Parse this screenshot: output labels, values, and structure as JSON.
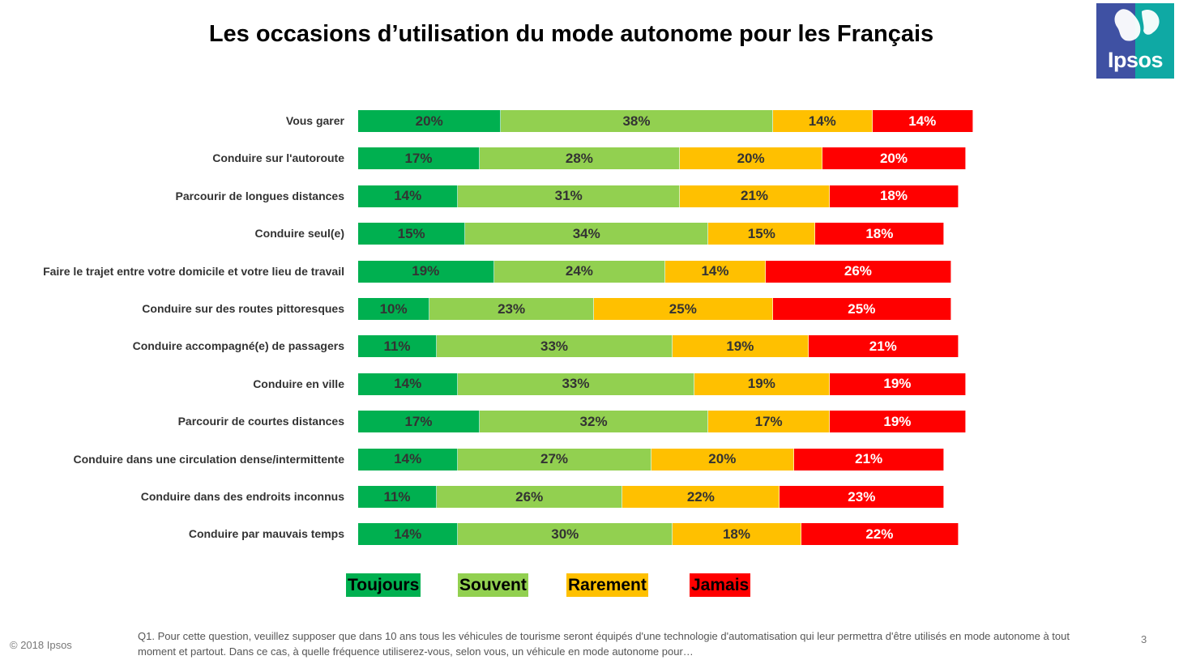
{
  "title": "Les occasions d’utilisation du mode autonome pour les Français",
  "logo": {
    "text": "Ipsos",
    "colors": {
      "blue": "#3f51a3",
      "teal": "#0fa9a4"
    }
  },
  "chart_data": {
    "type": "bar",
    "orientation": "horizontal-stacked",
    "title": "Les occasions d’utilisation du mode autonome pour les Français",
    "unit": "%",
    "categories": [
      "Vous garer",
      "Conduire sur l'autoroute",
      "Parcourir de longues distances",
      "Conduire seul(e)",
      "Faire le trajet entre votre domicile et votre lieu de travail",
      "Conduire sur des routes pittoresques",
      "Conduire accompagné(e) de passagers",
      "Conduire en ville",
      "Parcourir de courtes distances",
      "Conduire dans une circulation dense/intermittente",
      "Conduire dans des endroits inconnus",
      "Conduire par mauvais temps"
    ],
    "series": [
      {
        "name": "Toujours",
        "color": "#00b050",
        "text_color": "#333333",
        "values": [
          20,
          17,
          14,
          15,
          19,
          10,
          11,
          14,
          17,
          14,
          11,
          14
        ]
      },
      {
        "name": "Souvent",
        "color": "#92d050",
        "text_color": "#333333",
        "values": [
          38,
          28,
          31,
          34,
          24,
          23,
          33,
          33,
          32,
          27,
          26,
          30
        ]
      },
      {
        "name": "Rarement",
        "color": "#ffc000",
        "text_color": "#333333",
        "values": [
          14,
          20,
          21,
          15,
          14,
          25,
          19,
          19,
          17,
          20,
          22,
          18
        ]
      },
      {
        "name": "Jamais",
        "color": "#ff0000",
        "text_color": "#ffffff",
        "values": [
          14,
          20,
          18,
          18,
          26,
          25,
          21,
          19,
          19,
          21,
          23,
          22
        ]
      }
    ],
    "legend_position": "bottom"
  },
  "footer": {
    "copyright": "© 2018 Ipsos",
    "footnote": "Q1. Pour cette question, veuillez supposer que dans 10 ans tous les véhicules de tourisme seront équipés d'une technologie d'automatisation qui leur permettra d'être utilisés en mode autonome à tout moment et partout. Dans ce cas, à quelle fréquence utiliserez-vous, selon vous, un véhicule en mode autonome pour…",
    "page_number": "3"
  }
}
